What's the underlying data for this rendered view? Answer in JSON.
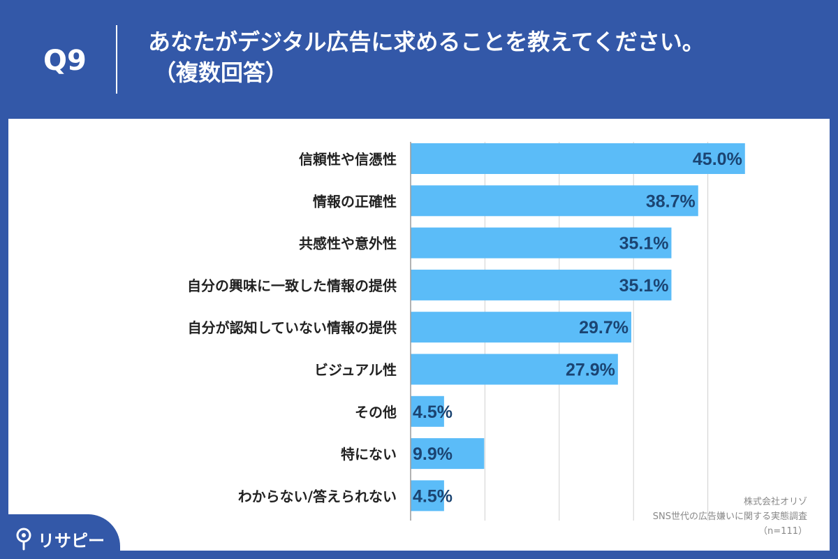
{
  "header": {
    "question_label": "Q9",
    "title_line1": "あなたがデジタル広告に求めることを教えてください。",
    "title_line2": "（複数回答）"
  },
  "chart_data": {
    "type": "bar",
    "orientation": "horizontal",
    "categories": [
      "信頼性や信憑性",
      "情報の正確性",
      "共感性や意外性",
      "自分の興味に一致した情報の提供",
      "自分が認知していない情報の提供",
      "ビジュアル性",
      "その他",
      "特にない",
      "わからない/答えられない"
    ],
    "values": [
      45.0,
      38.7,
      35.1,
      35.1,
      29.7,
      27.9,
      4.5,
      9.9,
      4.5
    ],
    "value_labels": [
      "45.0%",
      "38.7%",
      "35.1%",
      "35.1%",
      "29.7%",
      "27.9%",
      "4.5%",
      "9.9%",
      "4.5%"
    ],
    "xlim": [
      0,
      50
    ],
    "grid": true,
    "bar_color": "#5bbcf8",
    "label_color": "#1b4472"
  },
  "source": {
    "line1": "株式会社オリゾ",
    "line2": "SNS世代の広告嫌いに関する実態調査",
    "line3": "（n=111）"
  },
  "logo": {
    "text": "リサピー",
    "icon": "map-pin-icon"
  }
}
